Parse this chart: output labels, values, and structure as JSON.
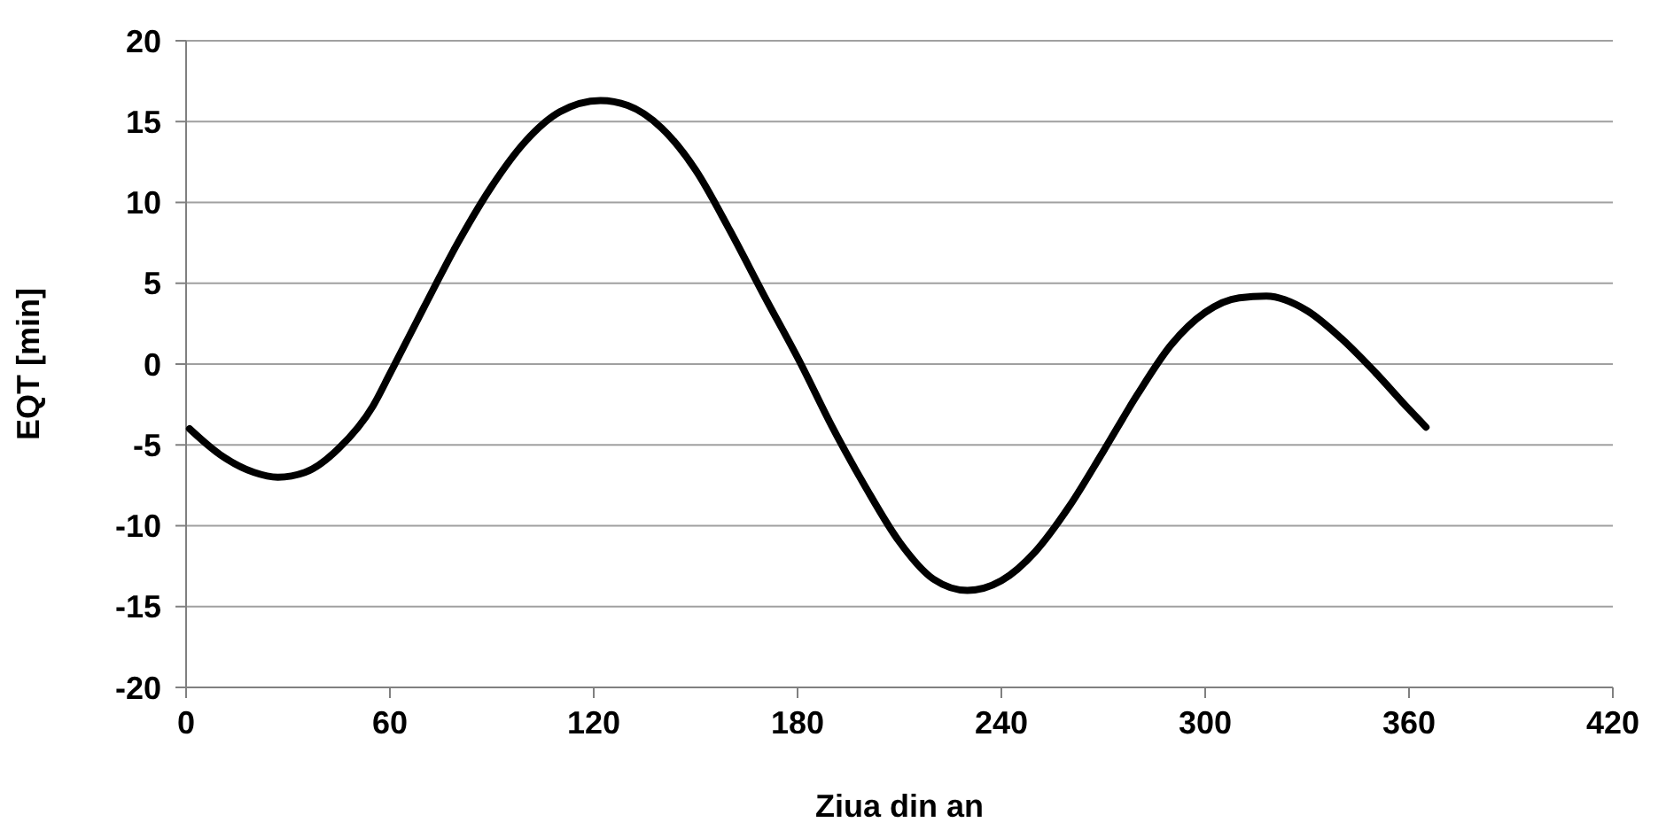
{
  "chart_data": {
    "type": "line",
    "xlabel": "Ziua din an",
    "ylabel": "EQT [min]",
    "x": [
      1,
      10,
      20,
      27,
      35,
      45,
      55,
      60,
      70,
      80,
      90,
      100,
      110,
      122,
      130,
      140,
      150,
      160,
      170,
      181,
      190,
      200,
      210,
      220,
      230,
      240,
      250,
      260,
      270,
      280,
      290,
      300,
      310,
      318,
      330,
      340,
      350,
      360,
      365
    ],
    "series": [
      {
        "color": "#000000",
        "values": [
          -4.0,
          -5.6,
          -6.7,
          -7.0,
          -6.7,
          -5.2,
          -2.6,
          -0.6,
          3.5,
          7.5,
          11.0,
          13.8,
          15.6,
          16.3,
          16.0,
          14.6,
          12.0,
          8.3,
          4.3,
          0,
          -3.8,
          -7.6,
          -11.0,
          -13.3,
          -14.0,
          -13.4,
          -11.6,
          -8.8,
          -5.4,
          -1.9,
          1.2,
          3.2,
          4.1,
          4.2,
          3.3,
          1.6,
          -0.5,
          -2.8,
          -3.9
        ]
      }
    ],
    "xlim": [
      0,
      420
    ],
    "xticks": [
      0,
      60,
      120,
      180,
      240,
      300,
      360,
      420
    ],
    "ylim": [
      -20,
      20
    ],
    "yticks": [
      -20,
      -15,
      -10,
      -5,
      0,
      5,
      10,
      15,
      20
    ],
    "grid": "y",
    "line_style": "solid",
    "marker": "none"
  }
}
